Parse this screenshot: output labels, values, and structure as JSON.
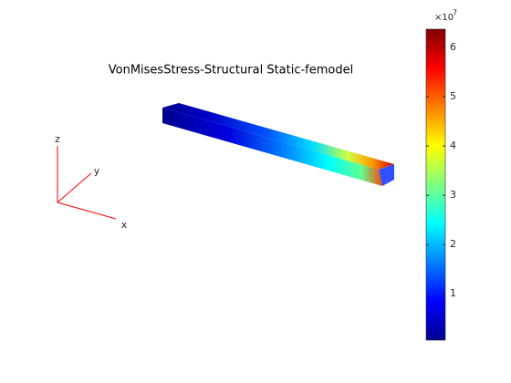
{
  "chart_data": {
    "type": "colorbar",
    "title": "VonMisesStress-Structural Static-femodel",
    "axis_labels": {
      "x": "x",
      "y": "y",
      "z": "z"
    },
    "colorbar_multiplier": {
      "base": "×10",
      "exponent": "7"
    },
    "clim": [
      0.06,
      6.37
    ],
    "cticks": [
      1,
      2,
      3,
      4,
      5,
      6
    ],
    "colormap": [
      "#00008f",
      "#0000ff",
      "#0080ff",
      "#00ffff",
      "#80ff80",
      "#ffff00",
      "#ff8000",
      "#ff0000",
      "#800000"
    ]
  }
}
